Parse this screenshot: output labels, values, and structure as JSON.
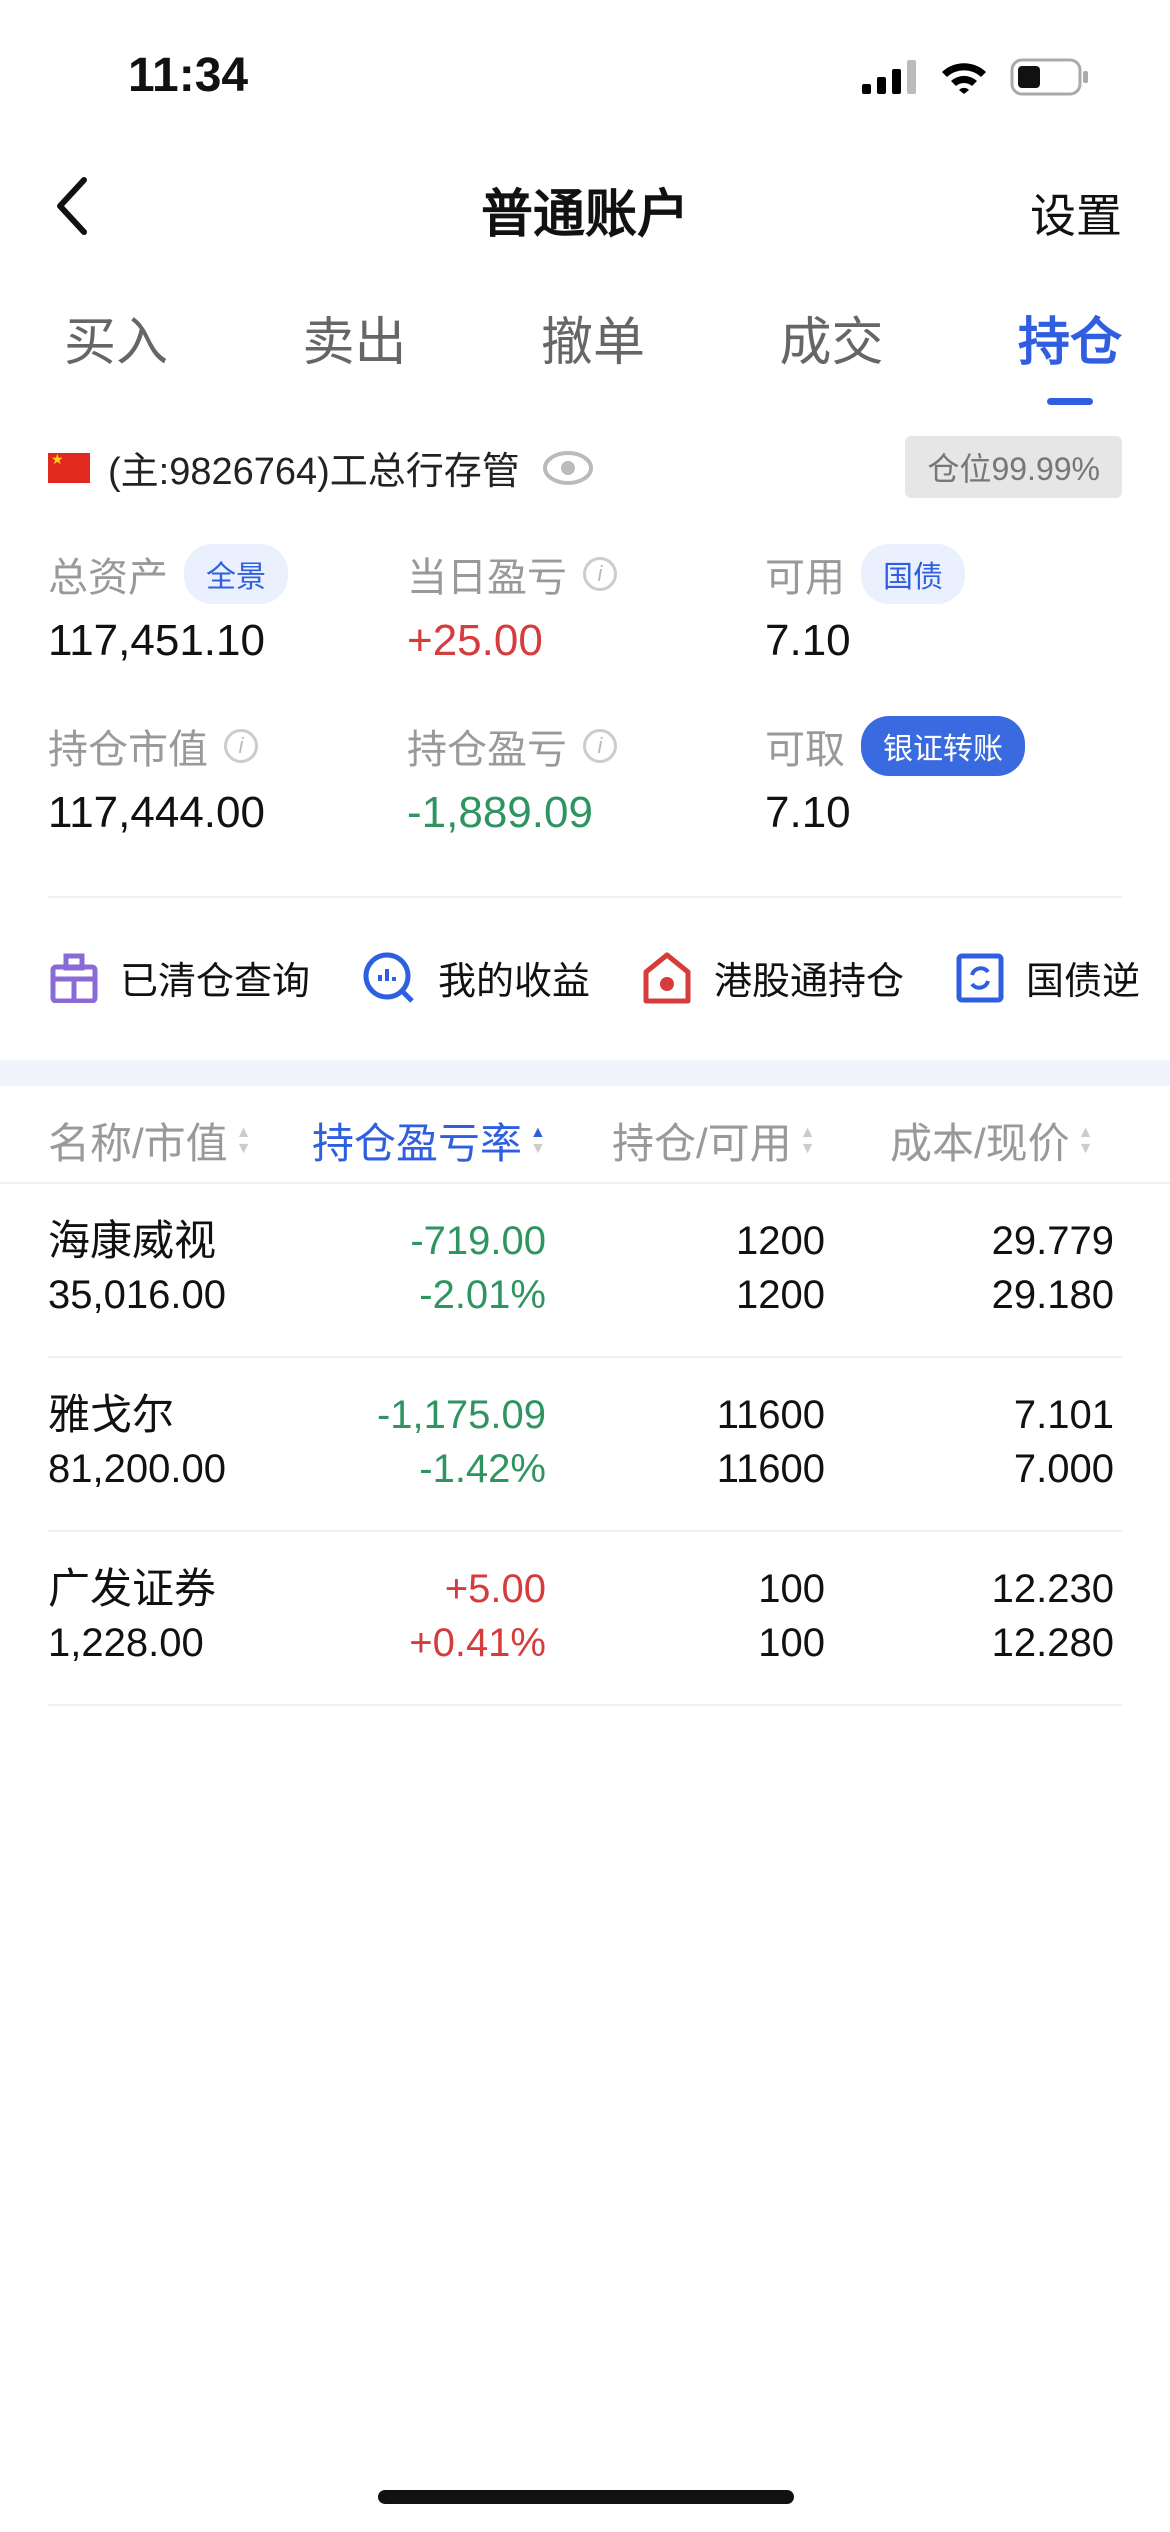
{
  "status_bar": {
    "time": "11:34"
  },
  "nav": {
    "title": "普通账户",
    "settings": "设置"
  },
  "tabs": [
    {
      "label": "买入"
    },
    {
      "label": "卖出"
    },
    {
      "label": "撤单"
    },
    {
      "label": "成交"
    },
    {
      "label": "持仓",
      "active": true
    }
  ],
  "account": {
    "name": "(主:9826764)工总行存管",
    "position_badge": "仓位99.99%"
  },
  "metrics": {
    "total_assets": {
      "label": "总资产",
      "tag": "全景",
      "value": "117,451.10"
    },
    "daily_pnl": {
      "label": "当日盈亏",
      "value": "+25.00"
    },
    "available": {
      "label": "可用",
      "tag": "国债",
      "value": "7.10"
    },
    "market_value": {
      "label": "持仓市值",
      "value": "117,444.00"
    },
    "position_pnl": {
      "label": "持仓盈亏",
      "value": "-1,889.09"
    },
    "withdrawable": {
      "label": "可取",
      "tag": "银证转账",
      "value": "7.10"
    }
  },
  "quick_links": [
    {
      "label": "已清仓查询",
      "icon": "cleared-icon"
    },
    {
      "label": "我的收益",
      "icon": "earnings-icon"
    },
    {
      "label": "港股通持仓",
      "icon": "hk-connect-icon"
    },
    {
      "label": "国债逆",
      "icon": "bond-repo-icon"
    }
  ],
  "table": {
    "headers": [
      "名称/市值",
      "持仓盈亏率",
      "持仓/可用",
      "成本/现价"
    ],
    "sorted_column": "持仓盈亏率",
    "rows": [
      {
        "name": "海康威视",
        "market_value": "35,016.00",
        "pnl": "-719.00",
        "pnl_rate": "-2.01%",
        "holding": "1200",
        "available": "1200",
        "cost": "29.779",
        "price": "29.180",
        "trend": "down"
      },
      {
        "name": "雅戈尔",
        "market_value": "81,200.00",
        "pnl": "-1,175.09",
        "pnl_rate": "-1.42%",
        "holding": "11600",
        "available": "11600",
        "cost": "7.101",
        "price": "7.000",
        "trend": "down"
      },
      {
        "name": "广发证券",
        "market_value": "1,228.00",
        "pnl": "+5.00",
        "pnl_rate": "+0.41%",
        "holding": "100",
        "available": "100",
        "cost": "12.230",
        "price": "12.280",
        "trend": "up"
      }
    ]
  },
  "colors": {
    "accent": "#2f5fe0",
    "up": "#d63c3c",
    "down": "#2e9560"
  }
}
